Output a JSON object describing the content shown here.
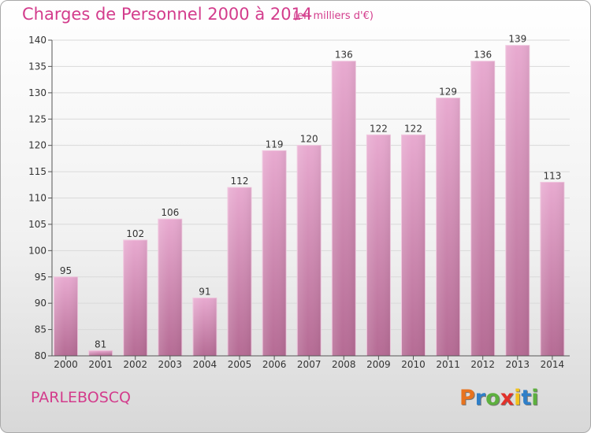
{
  "header": {
    "title": "Charges de Personnel 2000 à 2014",
    "unit": "(en milliers d'€)"
  },
  "footer": {
    "commune": "PARLEBOSCQ",
    "brand": "Proxiti",
    "brand_colors": [
      "#e8731e",
      "#2f7fc8",
      "#5db03e",
      "#e2312a",
      "#f2c21b",
      "#2f7fc8",
      "#5db03e"
    ]
  },
  "colors": {
    "accent": "#d33c8c",
    "bar_light": "#e8aad0",
    "bar_dark": "#b56b94"
  },
  "chart_data": {
    "type": "bar",
    "title": "Charges de Personnel 2000 à 2014",
    "categories": [
      "2000",
      "2001",
      "2002",
      "2003",
      "2004",
      "2005",
      "2006",
      "2007",
      "2008",
      "2009",
      "2010",
      "2011",
      "2012",
      "2013",
      "2014"
    ],
    "values": [
      95,
      81,
      102,
      106,
      91,
      112,
      119,
      120,
      136,
      122,
      122,
      129,
      136,
      139,
      113
    ],
    "ylim": [
      80,
      140
    ],
    "yticks": [
      80,
      85,
      90,
      95,
      100,
      105,
      110,
      115,
      120,
      125,
      130,
      135,
      140
    ],
    "grid": true,
    "xlabel": "",
    "ylabel": ""
  }
}
